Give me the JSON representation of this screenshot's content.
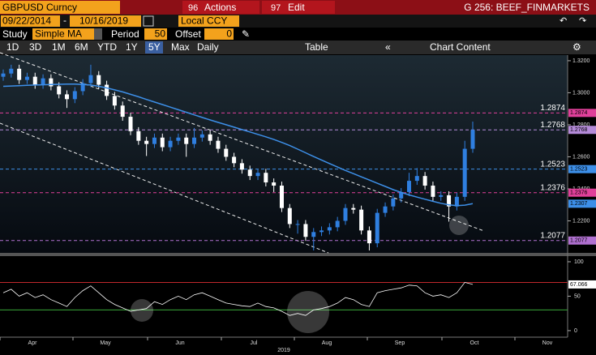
{
  "toolbar": {
    "security": "GBPUSD Curncy",
    "actions_num": "96",
    "actions": "Actions",
    "edit_num": "97",
    "edit": "Edit",
    "page": "G 256: BEEF_FINMARKETS"
  },
  "dates": {
    "start": "09/22/2014",
    "end": "10/16/2019",
    "currency": "Local CCY"
  },
  "study": {
    "label": "Study",
    "name": "Simple MA",
    "period_label": "Period",
    "period": 50,
    "offset_label": "Offset",
    "offset": 0
  },
  "ranges": [
    "1D",
    "3D",
    "1M",
    "6M",
    "YTD",
    "1Y",
    "5Y",
    "Max"
  ],
  "selected_range": "5Y",
  "frequency": "Daily",
  "table": "Table",
  "chart_content": "Chart Content",
  "chart_data": {
    "type": "candlestick",
    "up_color": "#2f7fe0",
    "down_color": "#ffffff",
    "open": [
      1.31,
      1.312,
      1.315,
      1.308,
      1.31,
      1.305,
      1.309,
      1.304,
      1.299,
      1.296,
      1.301,
      1.306,
      1.311,
      1.305,
      1.298,
      1.292,
      1.285,
      1.276,
      1.27,
      1.268,
      1.272,
      1.266,
      1.27,
      1.272,
      1.268,
      1.272,
      1.274,
      1.27,
      1.265,
      1.26,
      1.256,
      1.252,
      1.248,
      1.25,
      1.244,
      1.242,
      1.228,
      1.218,
      1.218,
      1.21,
      1.213,
      1.214,
      1.216,
      1.22,
      1.228,
      1.227,
      1.214,
      1.206,
      1.225,
      1.229,
      1.234,
      1.238,
      1.245,
      1.248,
      1.242,
      1.235,
      1.236,
      1.229,
      1.235,
      1.265
    ],
    "high": [
      1.3145,
      1.3175,
      1.3175,
      1.3125,
      1.3125,
      1.3115,
      1.3115,
      1.3065,
      1.3015,
      1.3035,
      1.3085,
      1.3175,
      1.3135,
      1.3075,
      1.3005,
      1.2945,
      1.2875,
      1.2785,
      1.2725,
      1.2745,
      1.2745,
      1.2725,
      1.2745,
      1.2745,
      1.278,
      1.2765,
      1.2765,
      1.2725,
      1.2675,
      1.2625,
      1.2585,
      1.2545,
      1.2525,
      1.2525,
      1.2465,
      1.2445,
      1.2305,
      1.2205,
      1.2205,
      1.2155,
      1.2165,
      1.2185,
      1.2225,
      1.2305,
      1.2305,
      1.2295,
      1.2165,
      1.2275,
      1.2315,
      1.2365,
      1.2405,
      1.25,
      1.253,
      1.2505,
      1.2445,
      1.2385,
      1.2385,
      1.2375,
      1.27,
      1.282
    ],
    "low": [
      1.3075,
      1.3095,
      1.3055,
      1.3055,
      1.3025,
      1.3025,
      1.3015,
      1.2965,
      1.2905,
      1.2935,
      1.2985,
      1.3035,
      1.3025,
      1.2955,
      1.2895,
      1.2825,
      1.2735,
      1.2675,
      1.2605,
      1.2655,
      1.2635,
      1.2635,
      1.2675,
      1.26,
      1.2655,
      1.2695,
      1.2675,
      1.2625,
      1.2575,
      1.2535,
      1.2495,
      1.2455,
      1.2455,
      1.2415,
      1.238,
      1.2255,
      1.2155,
      1.212,
      1.2075,
      1.2015,
      1.2105,
      1.2115,
      1.2135,
      1.2175,
      1.2245,
      1.2115,
      1.2015,
      1.2035,
      1.2225,
      1.2265,
      1.2315,
      1.2355,
      1.2425,
      1.2395,
      1.2325,
      1.2325,
      1.2195,
      1.2265,
      1.2325,
      1.2625
    ],
    "close": [
      1.312,
      1.315,
      1.308,
      1.31,
      1.305,
      1.309,
      1.304,
      1.299,
      1.296,
      1.301,
      1.306,
      1.311,
      1.305,
      1.298,
      1.292,
      1.285,
      1.276,
      1.27,
      1.268,
      1.272,
      1.266,
      1.27,
      1.272,
      1.268,
      1.272,
      1.274,
      1.27,
      1.265,
      1.26,
      1.256,
      1.252,
      1.248,
      1.25,
      1.244,
      1.242,
      1.228,
      1.218,
      1.218,
      1.21,
      1.213,
      1.214,
      1.216,
      1.22,
      1.228,
      1.227,
      1.214,
      1.206,
      1.225,
      1.229,
      1.234,
      1.238,
      1.245,
      1.248,
      1.242,
      1.235,
      1.236,
      1.229,
      1.235,
      1.265,
      1.2768
    ],
    "ma": {
      "color": "#3d8fe8",
      "values": [
        1.304,
        1.3042,
        1.3044,
        1.3046,
        1.3048,
        1.305,
        1.3052,
        1.3053,
        1.3054,
        1.3054,
        1.3052,
        1.3048,
        1.304,
        1.303,
        1.3018,
        1.3005,
        1.299,
        1.2975,
        1.2958,
        1.2942,
        1.2926,
        1.291,
        1.2894,
        1.2878,
        1.2862,
        1.2846,
        1.283,
        1.2815,
        1.28,
        1.2785,
        1.277,
        1.2755,
        1.274,
        1.2725,
        1.2708,
        1.269,
        1.267,
        1.2648,
        1.2625,
        1.2602,
        1.258,
        1.2558,
        1.2536,
        1.2515,
        1.2495,
        1.2475,
        1.2455,
        1.2435,
        1.2415,
        1.2395,
        1.2378,
        1.2362,
        1.2348,
        1.2335,
        1.2322,
        1.231,
        1.23,
        1.2295,
        1.2298,
        1.2307
      ]
    },
    "levels": [
      {
        "value": 1.2874,
        "color": "#e0409a"
      },
      {
        "value": 1.2768,
        "color": "#b48ad8"
      },
      {
        "value": 1.2523,
        "color": "#3d8fe8"
      },
      {
        "value": 1.2376,
        "color": "#e0409a"
      },
      {
        "value": 1.2077,
        "color": "#b070d0"
      }
    ],
    "ylim": [
      1.2,
      1.3235
    ],
    "yticks": [
      {
        "value": 1.22,
        "label": "1.2200"
      },
      {
        "value": 1.24,
        "label": "1.2400"
      },
      {
        "value": 1.26,
        "label": "1.2600"
      },
      {
        "value": 1.28,
        "label": "1.2800"
      },
      {
        "value": 1.3,
        "label": "1.3000"
      },
      {
        "value": 1.32,
        "label": "1.3200"
      }
    ],
    "rsi": {
      "color": "#ffffff",
      "values": [
        55,
        60,
        50,
        55,
        48,
        52,
        45,
        40,
        35,
        48,
        58,
        65,
        55,
        45,
        38,
        33,
        28,
        30,
        32,
        42,
        38,
        45,
        50,
        45,
        52,
        55,
        50,
        45,
        40,
        38,
        36,
        35,
        40,
        35,
        33,
        28,
        22,
        25,
        22,
        30,
        32,
        35,
        40,
        48,
        45,
        38,
        35,
        55,
        58,
        60,
        62,
        66,
        65,
        55,
        50,
        52,
        48,
        55,
        70,
        67.066
      ],
      "ylim": [
        -9.5,
        107
      ],
      "yticks": [
        0,
        50,
        100
      ],
      "levels": [
        {
          "value": 70,
          "color": "#c0282c"
        },
        {
          "value": 30,
          "color": "#3aa83a"
        }
      ]
    },
    "months": [
      "Apr",
      "May",
      "Jun",
      "Jul",
      "Aug",
      "Sep",
      "Oct",
      "Nov"
    ],
    "year": "2019"
  }
}
